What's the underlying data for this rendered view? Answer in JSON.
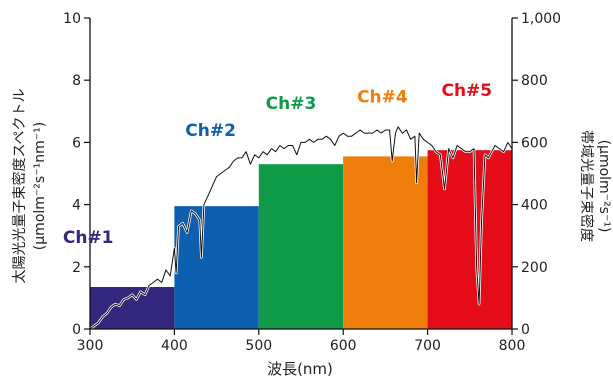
{
  "chart_data": {
    "type": "bar",
    "xlabel": "波長(nm)",
    "ylabel_left": [
      "太陽光光量子束密度スペクトル",
      "(µmolm⁻²s⁻¹nm⁻¹)"
    ],
    "ylabel_right": [
      "帯域光量子束密度",
      "(µmolm⁻²s⁻¹)"
    ],
    "xlim": [
      300,
      800
    ],
    "ylim_left": [
      0,
      10
    ],
    "ylim_right": [
      0,
      1000
    ],
    "x_ticks": [
      "300",
      "400",
      "500",
      "600",
      "700",
      "800"
    ],
    "y_left_ticks": [
      "0",
      "2",
      "4",
      "6",
      "8",
      "10"
    ],
    "y_right_ticks": [
      "0",
      "200",
      "400",
      "600",
      "800",
      "1,000"
    ],
    "channels": [
      {
        "label": "Ch#1",
        "x_start": 300,
        "x_end": 400,
        "value": 135,
        "color": "#33287e"
      },
      {
        "label": "Ch#2",
        "x_start": 400,
        "x_end": 500,
        "value": 395,
        "color": "#0d5fb0"
      },
      {
        "label": "Ch#3",
        "x_start": 500,
        "x_end": 600,
        "value": 530,
        "color": "#0f9a48"
      },
      {
        "label": "Ch#4",
        "x_start": 600,
        "x_end": 700,
        "value": 555,
        "color": "#ee7d0b"
      },
      {
        "label": "Ch#5",
        "x_start": 700,
        "x_end": 800,
        "value": 575,
        "color": "#e60d1a"
      }
    ],
    "spectrum": {
      "x": [
        300,
        305,
        310,
        315,
        320,
        325,
        330,
        335,
        340,
        345,
        350,
        355,
        360,
        365,
        370,
        375,
        380,
        385,
        390,
        395,
        400,
        402,
        405,
        410,
        415,
        420,
        425,
        430,
        432,
        435,
        440,
        445,
        450,
        455,
        460,
        465,
        470,
        475,
        480,
        485,
        490,
        495,
        500,
        505,
        510,
        515,
        520,
        525,
        530,
        535,
        540,
        545,
        550,
        555,
        560,
        565,
        570,
        575,
        580,
        585,
        590,
        595,
        600,
        605,
        610,
        615,
        620,
        625,
        630,
        635,
        640,
        645,
        650,
        655,
        658,
        662,
        665,
        670,
        675,
        680,
        685,
        687,
        690,
        695,
        700,
        705,
        710,
        715,
        720,
        725,
        730,
        735,
        740,
        745,
        750,
        755,
        758,
        761,
        764,
        768,
        772,
        776,
        780,
        785,
        790,
        795,
        800
      ],
      "y": [
        0,
        0.1,
        0.2,
        0.4,
        0.5,
        0.7,
        0.8,
        0.75,
        0.95,
        1.0,
        1.1,
        0.95,
        1.2,
        1.1,
        1.4,
        1.5,
        1.6,
        1.5,
        1.9,
        1.7,
        2.6,
        1.8,
        3.3,
        3.4,
        3.1,
        3.8,
        3.7,
        3.5,
        2.3,
        4.0,
        4.3,
        4.6,
        4.9,
        5.0,
        5.1,
        5.2,
        5.4,
        5.5,
        5.5,
        5.7,
        5.3,
        5.6,
        5.5,
        5.7,
        5.6,
        5.8,
        5.7,
        5.9,
        5.8,
        5.9,
        5.9,
        5.6,
        6.0,
        6.0,
        6.1,
        6.0,
        6.1,
        6.1,
        6.2,
        6.1,
        5.9,
        6.2,
        6.3,
        6.2,
        6.2,
        6.3,
        6.4,
        6.3,
        6.3,
        6.3,
        6.4,
        6.3,
        6.4,
        6.4,
        5.4,
        6.3,
        6.5,
        6.3,
        6.4,
        6.1,
        6.2,
        4.7,
        6.3,
        6.1,
        6.0,
        5.9,
        5.7,
        5.6,
        4.5,
        5.8,
        5.5,
        5.9,
        5.8,
        5.7,
        5.7,
        5.8,
        2.0,
        0.8,
        3.5,
        5.6,
        5.5,
        5.7,
        5.9,
        5.8,
        5.7,
        6.0,
        5.8
      ]
    }
  }
}
